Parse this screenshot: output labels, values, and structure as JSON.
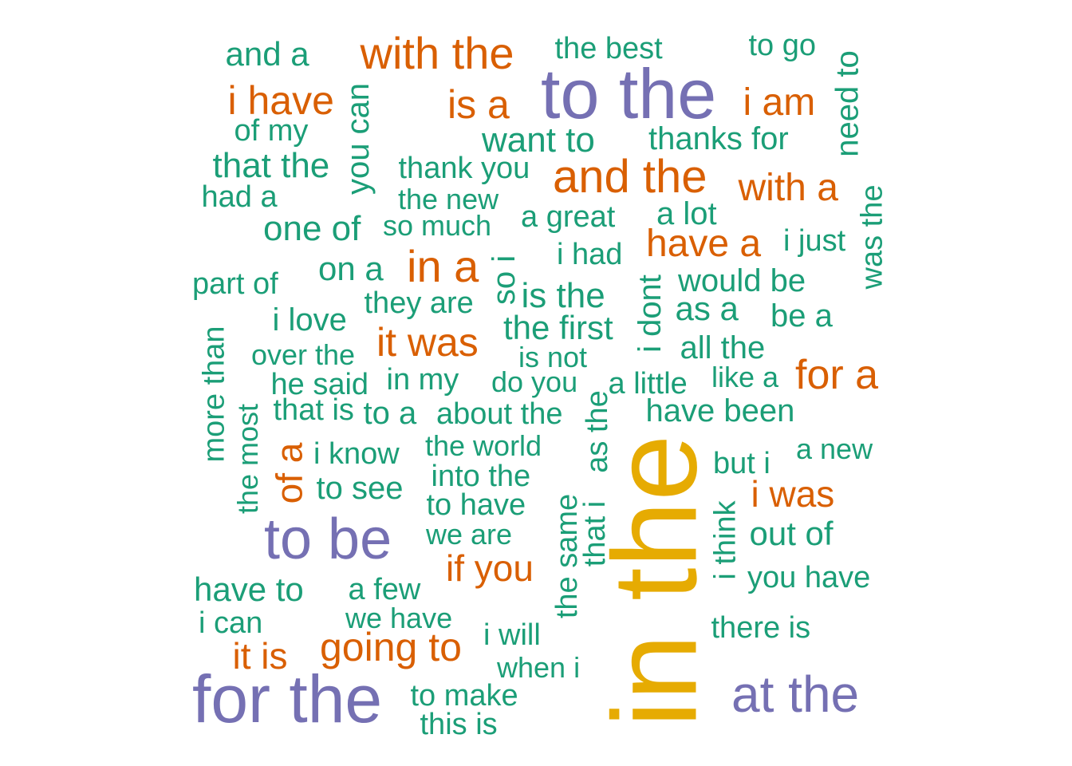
{
  "palette": {
    "green": "#1B9E77",
    "orange": "#D95F02",
    "purple": "#7570B3",
    "gold": "#E6AB02"
  },
  "words": [
    {
      "id": "in-the",
      "text": "in the",
      "freq": 5,
      "color": "gold"
    },
    {
      "id": "to-the",
      "text": "to the",
      "freq": 4,
      "color": "purple"
    },
    {
      "id": "for-the",
      "text": "for the",
      "freq": 4,
      "color": "purple"
    },
    {
      "id": "to-be",
      "text": "to be",
      "freq": 4,
      "color": "purple"
    },
    {
      "id": "at-the",
      "text": "at the",
      "freq": 4,
      "color": "purple"
    },
    {
      "id": "with-the",
      "text": "with the",
      "freq": 3,
      "color": "orange"
    },
    {
      "id": "and-the",
      "text": "and the",
      "freq": 3,
      "color": "orange"
    },
    {
      "id": "in-a",
      "text": "in a",
      "freq": 3,
      "color": "orange"
    },
    {
      "id": "i-have",
      "text": "i have",
      "freq": 3,
      "color": "orange"
    },
    {
      "id": "is-a",
      "text": "is a",
      "freq": 3,
      "color": "orange"
    },
    {
      "id": "i-am",
      "text": "i am",
      "freq": 3,
      "color": "orange"
    },
    {
      "id": "with-a",
      "text": "with a",
      "freq": 3,
      "color": "orange"
    },
    {
      "id": "have-a",
      "text": "have a",
      "freq": 3,
      "color": "orange"
    },
    {
      "id": "it-was",
      "text": "it was",
      "freq": 3,
      "color": "orange"
    },
    {
      "id": "for-a",
      "text": "for a",
      "freq": 3,
      "color": "orange"
    },
    {
      "id": "of-a",
      "text": "of a",
      "freq": 3,
      "color": "orange"
    },
    {
      "id": "i-was",
      "text": "i was",
      "freq": 3,
      "color": "orange"
    },
    {
      "id": "if-you",
      "text": "if you",
      "freq": 3,
      "color": "orange"
    },
    {
      "id": "going-to",
      "text": "going to",
      "freq": 3,
      "color": "orange"
    },
    {
      "id": "it-is",
      "text": "it is",
      "freq": 3,
      "color": "orange"
    },
    {
      "id": "and-a",
      "text": "and a",
      "freq": 2,
      "color": "green"
    },
    {
      "id": "the-best",
      "text": "the best",
      "freq": 2,
      "color": "green"
    },
    {
      "id": "to-go",
      "text": "to go",
      "freq": 2,
      "color": "green"
    },
    {
      "id": "need-to",
      "text": "need to",
      "freq": 2,
      "color": "green"
    },
    {
      "id": "you-can",
      "text": "you can",
      "freq": 2,
      "color": "green"
    },
    {
      "id": "of-my",
      "text": "of my",
      "freq": 2,
      "color": "green"
    },
    {
      "id": "want-to",
      "text": "want to",
      "freq": 2,
      "color": "green"
    },
    {
      "id": "thanks-for",
      "text": "thanks for",
      "freq": 2,
      "color": "green"
    },
    {
      "id": "that-the",
      "text": "that the",
      "freq": 2,
      "color": "green"
    },
    {
      "id": "thank-you",
      "text": "thank you",
      "freq": 2,
      "color": "green"
    },
    {
      "id": "had-a",
      "text": "had a",
      "freq": 2,
      "color": "green"
    },
    {
      "id": "the-new",
      "text": "the new",
      "freq": 2,
      "color": "green"
    },
    {
      "id": "was-the",
      "text": "was the",
      "freq": 2,
      "color": "green"
    },
    {
      "id": "one-of",
      "text": "one of",
      "freq": 2,
      "color": "green"
    },
    {
      "id": "so-much",
      "text": "so much",
      "freq": 2,
      "color": "green"
    },
    {
      "id": "a-great",
      "text": "a great",
      "freq": 2,
      "color": "green"
    },
    {
      "id": "a-lot",
      "text": "a lot",
      "freq": 2,
      "color": "green"
    },
    {
      "id": "i-just",
      "text": "i just",
      "freq": 2,
      "color": "green"
    },
    {
      "id": "on-a",
      "text": "on a",
      "freq": 2,
      "color": "green"
    },
    {
      "id": "so-i",
      "text": "so i",
      "freq": 2,
      "color": "green"
    },
    {
      "id": "i-had",
      "text": "i had",
      "freq": 2,
      "color": "green"
    },
    {
      "id": "part-of",
      "text": "part of",
      "freq": 2,
      "color": "green"
    },
    {
      "id": "i-dont",
      "text": "i dont",
      "freq": 2,
      "color": "green"
    },
    {
      "id": "would-be",
      "text": "would be",
      "freq": 2,
      "color": "green"
    },
    {
      "id": "they-are",
      "text": "they are",
      "freq": 2,
      "color": "green"
    },
    {
      "id": "is-the",
      "text": "is the",
      "freq": 2,
      "color": "green"
    },
    {
      "id": "as-a",
      "text": "as a",
      "freq": 2,
      "color": "green"
    },
    {
      "id": "i-love",
      "text": "i love",
      "freq": 2,
      "color": "green"
    },
    {
      "id": "the-first",
      "text": "the first",
      "freq": 2,
      "color": "green"
    },
    {
      "id": "be-a",
      "text": "be a",
      "freq": 2,
      "color": "green"
    },
    {
      "id": "more-than",
      "text": "more than",
      "freq": 2,
      "color": "green"
    },
    {
      "id": "over-the",
      "text": "over the",
      "freq": 2,
      "color": "green"
    },
    {
      "id": "is-not",
      "text": "is not",
      "freq": 2,
      "color": "green"
    },
    {
      "id": "all-the",
      "text": "all the",
      "freq": 2,
      "color": "green"
    },
    {
      "id": "he-said",
      "text": "he said",
      "freq": 2,
      "color": "green"
    },
    {
      "id": "in-my",
      "text": "in my",
      "freq": 2,
      "color": "green"
    },
    {
      "id": "do-you",
      "text": "do you",
      "freq": 2,
      "color": "green"
    },
    {
      "id": "a-little",
      "text": "a little",
      "freq": 2,
      "color": "green"
    },
    {
      "id": "like-a",
      "text": "like a",
      "freq": 2,
      "color": "green"
    },
    {
      "id": "the-most",
      "text": "the most",
      "freq": 2,
      "color": "green"
    },
    {
      "id": "that-is",
      "text": "that is",
      "freq": 2,
      "color": "green"
    },
    {
      "id": "to-a",
      "text": "to a",
      "freq": 2,
      "color": "green"
    },
    {
      "id": "about-the",
      "text": "about the",
      "freq": 2,
      "color": "green"
    },
    {
      "id": "as-the",
      "text": "as the",
      "freq": 2,
      "color": "green"
    },
    {
      "id": "have-been",
      "text": "have been",
      "freq": 2,
      "color": "green"
    },
    {
      "id": "the-world",
      "text": "the world",
      "freq": 2,
      "color": "green"
    },
    {
      "id": "i-know",
      "text": "i know",
      "freq": 2,
      "color": "green"
    },
    {
      "id": "a-new",
      "text": "a new",
      "freq": 2,
      "color": "green"
    },
    {
      "id": "but-i",
      "text": "but i",
      "freq": 2,
      "color": "green"
    },
    {
      "id": "into-the",
      "text": "into the",
      "freq": 2,
      "color": "green"
    },
    {
      "id": "to-see",
      "text": "to see",
      "freq": 2,
      "color": "green"
    },
    {
      "id": "to-have",
      "text": "to have",
      "freq": 2,
      "color": "green"
    },
    {
      "id": "the-same",
      "text": "the same",
      "freq": 2,
      "color": "green"
    },
    {
      "id": "that-i",
      "text": "that i",
      "freq": 2,
      "color": "green"
    },
    {
      "id": "i-think",
      "text": "i think",
      "freq": 2,
      "color": "green"
    },
    {
      "id": "out-of",
      "text": "out of",
      "freq": 2,
      "color": "green"
    },
    {
      "id": "we-are",
      "text": "we are",
      "freq": 2,
      "color": "green"
    },
    {
      "id": "have-to",
      "text": "have to",
      "freq": 2,
      "color": "green"
    },
    {
      "id": "a-few",
      "text": "a few",
      "freq": 2,
      "color": "green"
    },
    {
      "id": "you-have",
      "text": "you have",
      "freq": 2,
      "color": "green"
    },
    {
      "id": "i-can",
      "text": "i can",
      "freq": 2,
      "color": "green"
    },
    {
      "id": "we-have",
      "text": "we have",
      "freq": 2,
      "color": "green"
    },
    {
      "id": "there-is",
      "text": "there is",
      "freq": 2,
      "color": "green"
    },
    {
      "id": "i-will",
      "text": "i will",
      "freq": 2,
      "color": "green"
    },
    {
      "id": "when-i",
      "text": "when i",
      "freq": 2,
      "color": "green"
    },
    {
      "id": "to-make",
      "text": "to make",
      "freq": 2,
      "color": "green"
    },
    {
      "id": "this-is",
      "text": "this is",
      "freq": 2,
      "color": "green"
    }
  ]
}
